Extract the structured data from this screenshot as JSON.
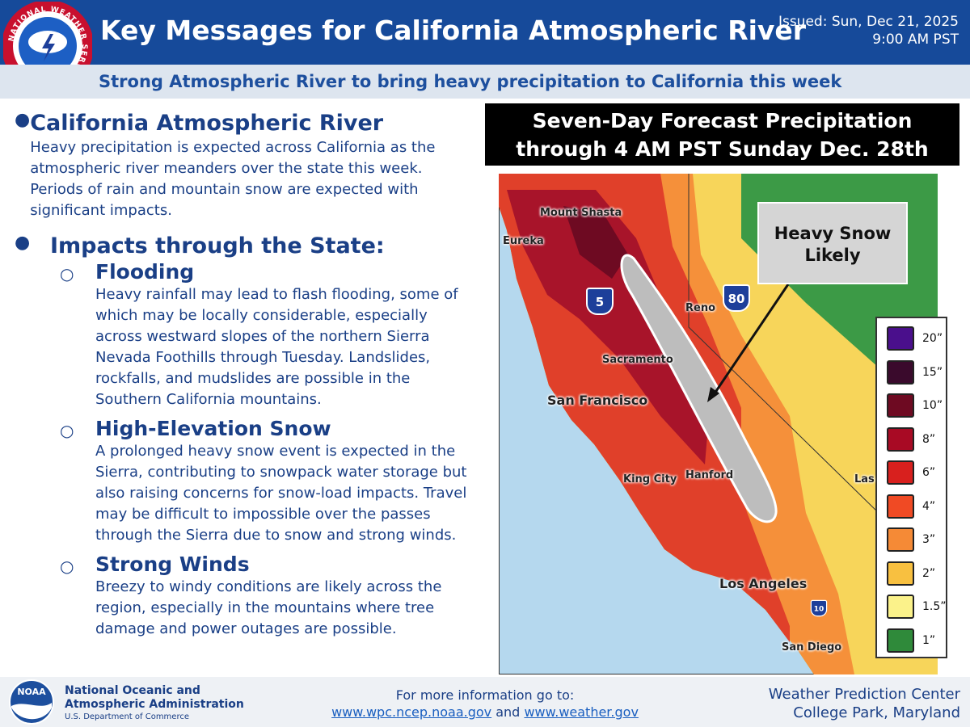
{
  "header": {
    "logo_text": "NATIONAL WEATHER SERVICE",
    "title": "Key Messages for California Atmospheric River",
    "issued": [
      "Issued: Sun, Dec 21, 2025",
      "9:00 AM PST"
    ],
    "subtitle": "Strong Atmospheric River to bring heavy precipitation to California this week"
  },
  "messages": [
    {
      "heading": "California Atmospheric River",
      "text": "Heavy precipitation is expected across California as the atmospheric river meanders over the state this week. Periods of rain and mountain snow are expected with significant impacts."
    },
    {
      "heading": "Impacts through the State:",
      "items": [
        {
          "heading": "Flooding",
          "text": "Heavy rainfall may lead to flash flooding, some of which may be locally considerable, especially across westward slopes of the northern Sierra Nevada Foothills through Tuesday. Landslides, rockfalls, and mudslides are possible in the Southern California mountains."
        },
        {
          "heading": "High-Elevation Snow",
          "text": "A prolonged heavy snow event is expected in the Sierra, contributing to snowpack water storage but also raising concerns for snow-load impacts. Travel may be difficult to impossible over the passes through the Sierra due to snow and strong winds."
        },
        {
          "heading": "Strong Winds",
          "text": "Breezy to windy conditions are likely across the region, especially in the mountains where tree damage and power outages are possible."
        }
      ]
    }
  ],
  "map": {
    "title": [
      "Seven-Day Forecast Precipitation",
      "through 4 AM PST Sunday Dec. 28th"
    ],
    "callout": "Heavy Snow Likely",
    "cities": [
      "Mount Shasta",
      "Eureka",
      "Reno",
      "Sacramento",
      "San Francisco",
      "King City",
      "Hanford",
      "Los Angeles",
      "San Diego",
      "Las"
    ],
    "highways": [
      "5",
      "80",
      "10"
    ],
    "legend": [
      {
        "label": "20”",
        "color": "#4a0f8c"
      },
      {
        "label": "15”",
        "color": "#3a0a2c"
      },
      {
        "label": "10”",
        "color": "#6e0a22"
      },
      {
        "label": "8”",
        "color": "#a80a24"
      },
      {
        "label": "6”",
        "color": "#d8201e"
      },
      {
        "label": "4”",
        "color": "#f04a24"
      },
      {
        "label": "3”",
        "color": "#f58a36"
      },
      {
        "label": "2”",
        "color": "#f8c040"
      },
      {
        "label": "1.5”",
        "color": "#fbf28a"
      },
      {
        "label": "1”",
        "color": "#2f8a3a"
      }
    ]
  },
  "footer": {
    "noaa": "NOAA",
    "agency": [
      "National Oceanic and",
      "Atmospheric Administration"
    ],
    "department": "U.S. Department of Commerce",
    "info": "For more information go to:",
    "links": [
      "www.wpc.ncep.noaa.gov",
      "www.weather.gov"
    ],
    "and": "and",
    "center": [
      "Weather Prediction Center",
      "College Park, Maryland"
    ]
  }
}
